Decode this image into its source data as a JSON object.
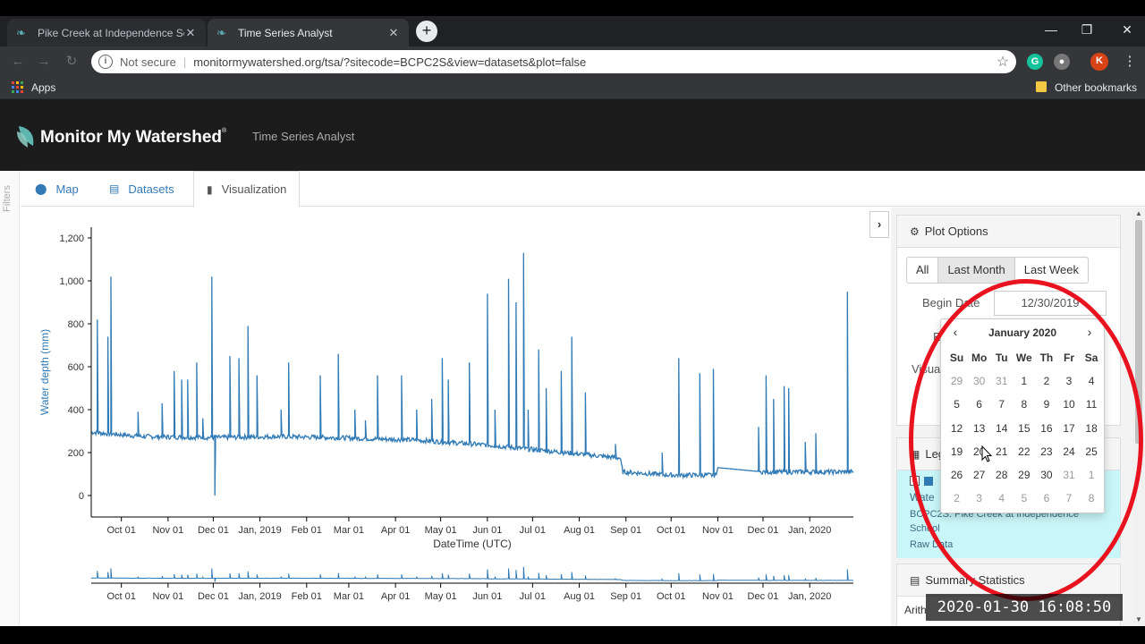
{
  "browser": {
    "tabs": [
      {
        "title": "Pike Creek at Independence Scho",
        "active": false
      },
      {
        "title": "Time Series Analyst",
        "active": true
      }
    ],
    "security_label": "Not secure",
    "url": "monitormywatershed.org/tsa/?sitecode=BCPC2S&view=datasets&plot=false",
    "profile_initial": "K",
    "bookmarks": {
      "apps": "Apps",
      "other": "Other bookmarks"
    }
  },
  "header": {
    "brand": "Monitor My Watershed",
    "reg": "®",
    "subtitle": "Time Series Analyst"
  },
  "filters_label": "Filters",
  "nav": {
    "tabs": [
      {
        "label": "Map"
      },
      {
        "label": "Datasets"
      },
      {
        "label": "Visualization"
      }
    ]
  },
  "plot_options": {
    "title": "Plot Options",
    "range_buttons": [
      "All",
      "Last Month",
      "Last Week"
    ],
    "active_range": "Last Month",
    "begin_label": "Begin Date",
    "begin_value": "12/30/2019",
    "end_label_partial": "E",
    "visual_label_partial": "Visua"
  },
  "legend": {
    "title_partial": "Leg",
    "series_partial": "Wate",
    "site": "BCPC2S: Pike Creek at Independence School",
    "quality": "Raw Data"
  },
  "summary": {
    "title": "Summary Statistics",
    "first_row_partial": "Arith"
  },
  "datepicker": {
    "month": "January 2020",
    "prev": "‹",
    "next": "›",
    "days_of_week": [
      "Su",
      "Mo",
      "Tu",
      "We",
      "Th",
      "Fr",
      "Sa"
    ],
    "weeks": [
      [
        "29",
        "30",
        "31",
        "1",
        "2",
        "3",
        "4"
      ],
      [
        "5",
        "6",
        "7",
        "8",
        "9",
        "10",
        "11"
      ],
      [
        "12",
        "13",
        "14",
        "15",
        "16",
        "17",
        "18"
      ],
      [
        "19",
        "20",
        "21",
        "22",
        "23",
        "24",
        "25"
      ],
      [
        "26",
        "27",
        "28",
        "29",
        "30",
        "31",
        "1"
      ],
      [
        "2",
        "3",
        "4",
        "5",
        "6",
        "7",
        "8"
      ]
    ],
    "other_month_cells": [
      [
        0,
        0
      ],
      [
        0,
        1
      ],
      [
        0,
        2
      ],
      [
        4,
        5
      ],
      [
        4,
        6
      ],
      [
        5,
        0
      ],
      [
        5,
        1
      ],
      [
        5,
        2
      ],
      [
        5,
        3
      ],
      [
        5,
        4
      ],
      [
        5,
        5
      ],
      [
        5,
        6
      ]
    ]
  },
  "timestamp": "2020-01-30  16:08:50",
  "chart_data": {
    "type": "line",
    "ylabel": "Water depth (mm)",
    "xlabel": "DateTime (UTC)",
    "ylim": [
      -100,
      1250
    ],
    "yticks": [
      "0",
      "200",
      "400",
      "600",
      "800",
      "1,000",
      "1,200"
    ],
    "ytick_values": [
      0,
      200,
      400,
      600,
      800,
      1000,
      1200
    ],
    "xticks": [
      "Oct 01",
      "Nov 01",
      "Dec 01",
      "Jan, 2019",
      "Feb 01",
      "Mar 01",
      "Apr 01",
      "May 01",
      "Jun 01",
      "Jul 01",
      "Aug 01",
      "Sep 01",
      "Oct 01",
      "Nov 01",
      "Dec 01",
      "Jan, 2020"
    ],
    "x_range": [
      "2018-09-11",
      "2020-01-30"
    ],
    "series": [
      {
        "name": "Water depth",
        "color": "#2f7ab5",
        "baseline": [
          [
            "2018-09-11",
            295
          ],
          [
            "2018-10-15",
            275
          ],
          [
            "2018-12-01",
            270
          ],
          [
            "2019-01-15",
            275
          ],
          [
            "2019-03-01",
            268
          ],
          [
            "2019-04-15",
            258
          ],
          [
            "2019-06-01",
            235
          ],
          [
            "2019-07-15",
            205
          ],
          [
            "2019-08-28",
            175
          ],
          [
            "2019-08-30",
            110
          ],
          [
            "2019-10-01",
            95
          ],
          [
            "2019-10-31",
            95
          ],
          [
            "2019-11-01",
            130
          ],
          [
            "2019-12-01",
            110
          ],
          [
            "2020-01-30",
            110
          ]
        ],
        "peaks": [
          [
            "2018-09-15",
            820
          ],
          [
            "2018-09-24",
            1020
          ],
          [
            "2018-09-22",
            740
          ],
          [
            "2018-10-12",
            390
          ],
          [
            "2018-10-28",
            430
          ],
          [
            "2018-11-05",
            580
          ],
          [
            "2018-11-10",
            540
          ],
          [
            "2018-11-14",
            540
          ],
          [
            "2018-11-20",
            620
          ],
          [
            "2018-11-24",
            360
          ],
          [
            "2018-11-30",
            1020
          ],
          [
            "2018-12-02",
            0
          ],
          [
            "2018-12-12",
            650
          ],
          [
            "2018-12-18",
            640
          ],
          [
            "2018-12-24",
            790
          ],
          [
            "2018-12-30",
            560
          ],
          [
            "2019-01-15",
            400
          ],
          [
            "2019-01-20",
            620
          ],
          [
            "2019-02-10",
            560
          ],
          [
            "2019-02-22",
            660
          ],
          [
            "2019-03-05",
            400
          ],
          [
            "2019-03-12",
            350
          ],
          [
            "2019-03-20",
            560
          ],
          [
            "2019-04-05",
            560
          ],
          [
            "2019-04-15",
            400
          ],
          [
            "2019-04-25",
            450
          ],
          [
            "2019-05-02",
            640
          ],
          [
            "2019-05-06",
            540
          ],
          [
            "2019-05-20",
            620
          ],
          [
            "2019-06-01",
            940
          ],
          [
            "2019-06-06",
            400
          ],
          [
            "2019-06-15",
            1010
          ],
          [
            "2019-06-20",
            900
          ],
          [
            "2019-06-25",
            1130
          ],
          [
            "2019-06-28",
            400
          ],
          [
            "2019-07-05",
            680
          ],
          [
            "2019-07-10",
            500
          ],
          [
            "2019-07-20",
            580
          ],
          [
            "2019-07-27",
            740
          ],
          [
            "2019-08-05",
            480
          ],
          [
            "2019-08-25",
            240
          ],
          [
            "2019-09-25",
            200
          ],
          [
            "2019-10-06",
            640
          ],
          [
            "2019-10-20",
            570
          ],
          [
            "2019-10-29",
            590
          ],
          [
            "2019-11-28",
            320
          ],
          [
            "2019-12-03",
            560
          ],
          [
            "2019-12-08",
            450
          ],
          [
            "2019-12-15",
            510
          ],
          [
            "2019-12-18",
            500
          ],
          [
            "2019-12-29",
            250
          ],
          [
            "2020-01-05",
            290
          ],
          [
            "2020-01-26",
            950
          ]
        ]
      }
    ]
  },
  "colors": {
    "accent": "#337ab7",
    "series": "#2f7ab5",
    "highlight_circle": "#e8131f",
    "legend_bg": "#c9f6f8"
  },
  "icons": [
    "map-marker-icon",
    "list-icon",
    "bar-chart-icon",
    "gear-icon",
    "chevron-right-icon",
    "calendar-icon",
    "checkbox-icon"
  ]
}
